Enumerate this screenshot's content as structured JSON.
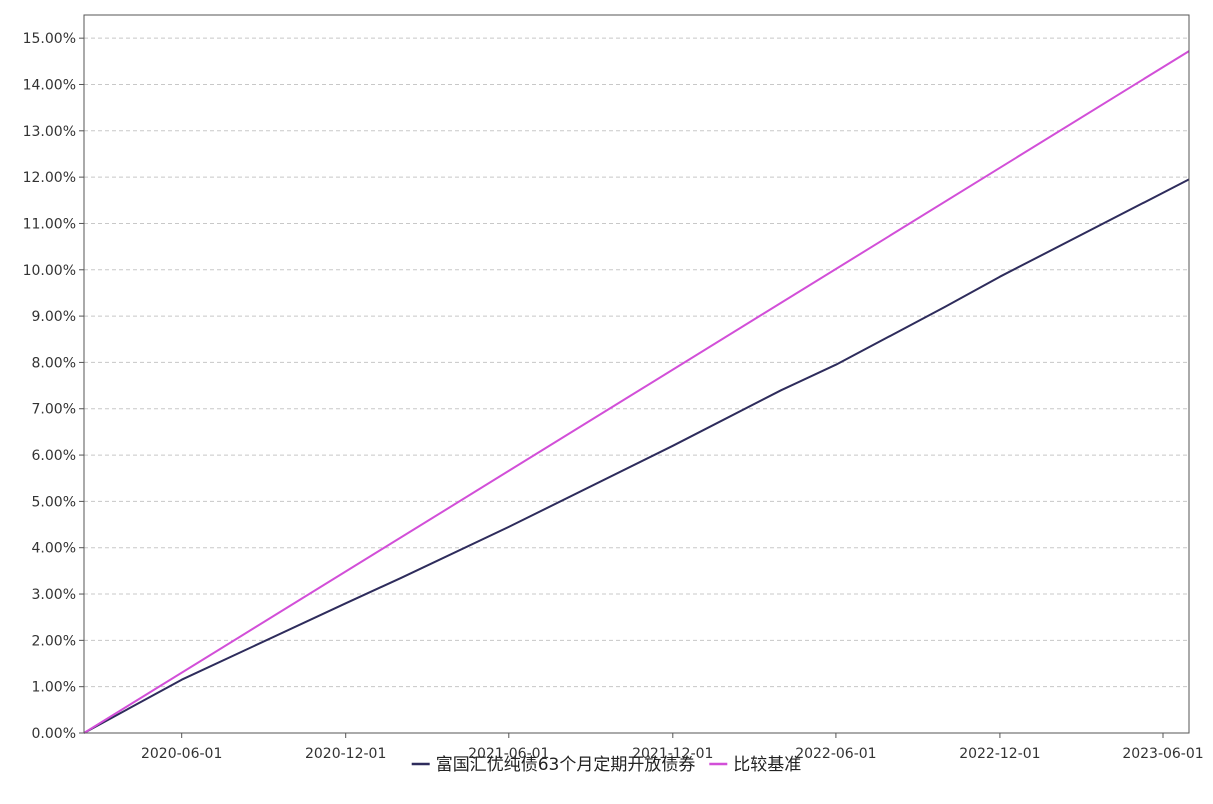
{
  "chart_data": {
    "type": "line",
    "title": "",
    "xlabel": "",
    "ylabel": "",
    "x_range": [
      "2020-02-13",
      "2023-06-30"
    ],
    "ylim": [
      0,
      15.5
    ],
    "y_ticks": [
      "0.00%",
      "1.00%",
      "2.00%",
      "3.00%",
      "4.00%",
      "5.00%",
      "6.00%",
      "7.00%",
      "8.00%",
      "9.00%",
      "10.00%",
      "11.00%",
      "12.00%",
      "13.00%",
      "14.00%",
      "15.00%"
    ],
    "y_tick_values": [
      0,
      1,
      2,
      3,
      4,
      5,
      6,
      7,
      8,
      9,
      10,
      11,
      12,
      13,
      14,
      15
    ],
    "x_ticks": [
      "2020-06-01",
      "2020-12-01",
      "2021-06-01",
      "2021-12-01",
      "2022-06-01",
      "2022-12-01",
      "2023-06-01"
    ],
    "grid": true,
    "legend_position": "bottom",
    "series": [
      {
        "name": "富国汇优纯债63个月定期开放债券",
        "color": "#2e2c5c",
        "x": [
          "2020-02-13",
          "2020-06-01",
          "2020-12-01",
          "2021-02-01",
          "2021-06-01",
          "2021-12-01",
          "2022-04-01",
          "2022-06-01",
          "2022-10-01",
          "2022-12-01",
          "2023-06-30"
        ],
        "y": [
          0.0,
          1.15,
          2.8,
          3.35,
          4.45,
          6.2,
          7.4,
          7.95,
          9.2,
          9.85,
          11.95
        ]
      },
      {
        "name": "比较基准",
        "color": "#d24fd8",
        "x": [
          "2020-02-13",
          "2023-06-30"
        ],
        "y": [
          0.0,
          14.72
        ]
      }
    ]
  }
}
